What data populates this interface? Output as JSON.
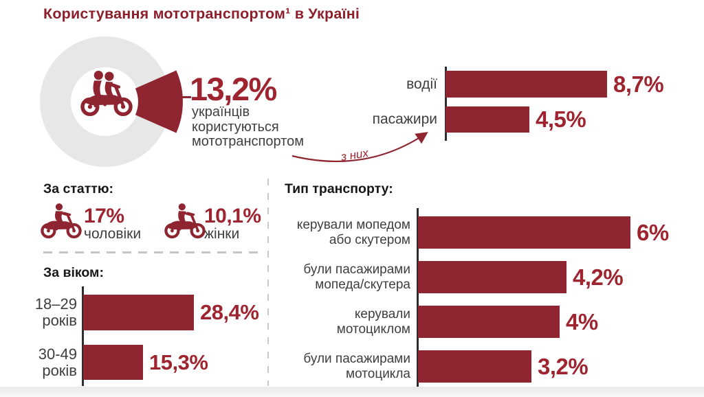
{
  "title": "Користування мототранспортом¹ в Україні",
  "accent": {
    "red_dark": "#8E2531",
    "red_number": "#9E2430",
    "red_title": "#8C1F2A",
    "heading_ink": "#161616",
    "text_gray": "#3E3E3E",
    "donut_gray": "#E7E7E7"
  },
  "sections": {
    "gender": {
      "heading": "За статтю:",
      "items": [
        {
          "value": 17,
          "value_label": "17%",
          "label": "чоловіки"
        },
        {
          "value": 10.1,
          "value_label": "10,1%",
          "label": "жінки"
        }
      ]
    }
  },
  "chart_data": [
    {
      "id": "usage_donut",
      "type": "donut",
      "value": 13.2,
      "value_label": "13,2%",
      "caption": "українців користуються мототранспортом",
      "color": "#8E2531",
      "track_color": "#E7E7E7"
    },
    {
      "id": "riders_breakdown",
      "type": "bar",
      "orientation": "horizontal",
      "annotation": "з них",
      "categories": [
        "водії",
        "пасажири"
      ],
      "values": [
        8.7,
        4.5
      ],
      "value_labels": [
        "8,7%",
        "4,5%"
      ],
      "unit": "%",
      "xlim": [
        0,
        9
      ]
    },
    {
      "id": "by_age",
      "type": "bar",
      "orientation": "horizontal",
      "title": "За віком:",
      "categories": [
        "18–29 років",
        "30-49 років"
      ],
      "category_lines": [
        [
          "18–29",
          "років"
        ],
        [
          "30-49",
          "років"
        ]
      ],
      "values": [
        28.4,
        15.3
      ],
      "value_labels": [
        "28,4%",
        "15,3%"
      ],
      "unit": "%",
      "xlim": [
        0,
        30
      ]
    },
    {
      "id": "by_transport",
      "type": "bar",
      "orientation": "horizontal",
      "title": "Тип транспорту:",
      "categories": [
        "керували мопедом або скутером",
        "були пасажирами мопеда/скутера",
        "керували мотоциклом",
        "були пасажирами мотоцикла"
      ],
      "category_lines": [
        [
          "керували мопедом",
          "або скутером"
        ],
        [
          "були пасажирами",
          "мопеда/скутера"
        ],
        [
          "керували",
          "мотоциклом"
        ],
        [
          "були пасажирами",
          "мотоцикла"
        ]
      ],
      "values": [
        6,
        4.2,
        4,
        3.2
      ],
      "value_labels": [
        "6%",
        "4,2%",
        "4%",
        "3,2%"
      ],
      "unit": "%",
      "xlim": [
        0,
        6.5
      ]
    }
  ]
}
